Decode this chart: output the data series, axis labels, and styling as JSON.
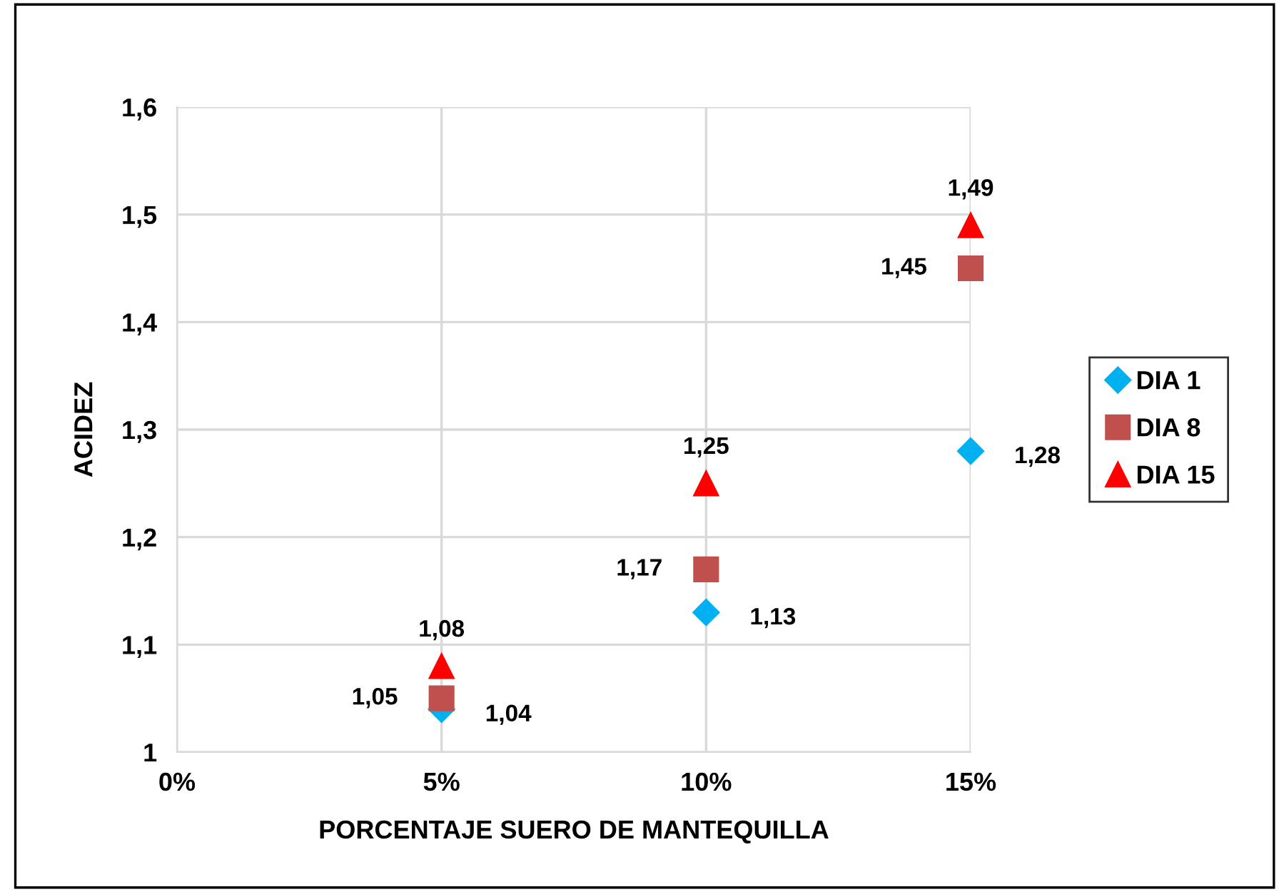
{
  "chart_data": {
    "type": "scatter",
    "xlabel": "PORCENTAJE SUERO DE MANTEQUILLA",
    "ylabel": "ACIDEZ",
    "x": [
      5,
      10,
      15
    ],
    "series": [
      {
        "name": "DIA 1",
        "color": "#00b0f0",
        "marker": "diamond",
        "values": [
          1.04,
          1.13,
          1.28
        ],
        "value_labels": [
          "1,04",
          "1,13",
          "1,28"
        ]
      },
      {
        "name": "DIA 8",
        "color": "#c0504d",
        "marker": "square",
        "values": [
          1.05,
          1.17,
          1.45
        ],
        "value_labels": [
          "1,05",
          "1,17",
          "1,45"
        ]
      },
      {
        "name": "DIA 15",
        "color": "#ff0000",
        "marker": "triangle",
        "values": [
          1.08,
          1.25,
          1.49
        ],
        "value_labels": [
          "1,08",
          "1,25",
          "1,49"
        ]
      }
    ],
    "xlim": [
      0,
      15
    ],
    "xticks": [
      {
        "value": 0,
        "label": "0%"
      },
      {
        "value": 5,
        "label": "5%"
      },
      {
        "value": 10,
        "label": "10%"
      },
      {
        "value": 15,
        "label": "15%"
      }
    ],
    "ylim": [
      1,
      1.6
    ],
    "yticks": [
      1,
      {
        "value": 1.1,
        "label": "1,1"
      },
      {
        "value": 1.2,
        "label": "1,2"
      },
      {
        "value": 1.3,
        "label": "1,3"
      },
      {
        "value": 1.4,
        "label": "1,4"
      },
      {
        "value": 1.5,
        "label": "1,5"
      },
      {
        "value": 1.6,
        "label": "1,6"
      }
    ],
    "grid": true,
    "legend": "right"
  }
}
